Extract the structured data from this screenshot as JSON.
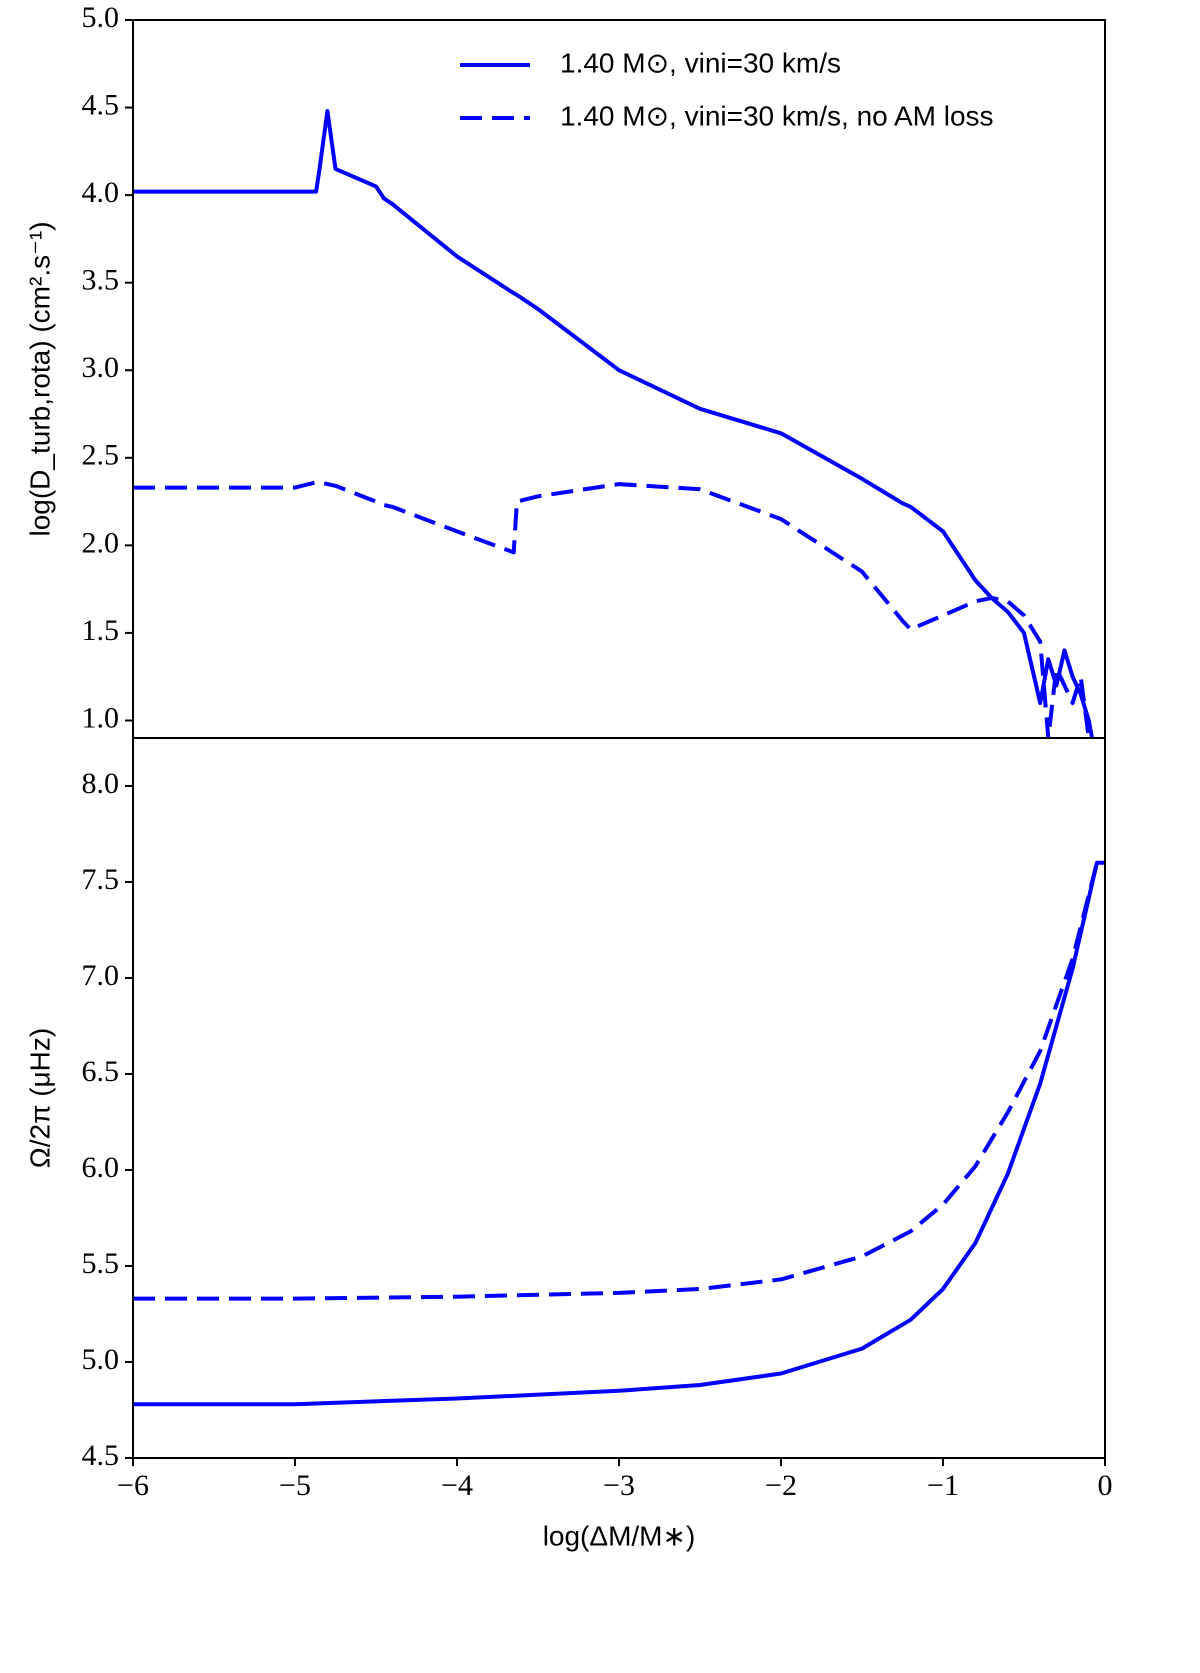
{
  "chart_data": [
    {
      "type": "line",
      "y_label": "log(D_turb,rota) (cm².s⁻¹)",
      "x": [
        -6,
        -5,
        -4.87,
        -4.85,
        -4.8,
        -4.75,
        -4.5,
        -4.45,
        -4.4,
        -4,
        -3.65,
        -3.63,
        -3.5,
        -3,
        -2.5,
        -2,
        -1.5,
        -1.25,
        -1.2,
        -1,
        -0.8,
        -0.7,
        -0.6,
        -0.5,
        -0.4,
        -0.35,
        -0.3,
        -0.25,
        -0.2,
        -0.15,
        -0.1,
        -0.08
      ],
      "series": [
        {
          "name": "1.40 M⊙, vini=30 km/s",
          "color": "#0000ff",
          "linestyle": "solid",
          "values": [
            4.02,
            4.02,
            4.02,
            4.14,
            4.48,
            4.15,
            4.05,
            3.98,
            3.95,
            3.65,
            3.44,
            3.43,
            3.35,
            3.0,
            2.78,
            2.64,
            2.38,
            2.24,
            2.22,
            2.08,
            1.8,
            1.7,
            1.62,
            1.5,
            1.1,
            1.35,
            1.2,
            1.4,
            1.25,
            1.15,
            1.0,
            0.9
          ]
        },
        {
          "name": "1.40 M⊙, vini=30 km/s, no AM loss",
          "color": "#0000ff",
          "linestyle": "dashed",
          "values": [
            2.33,
            2.33,
            2.36,
            2.36,
            2.35,
            2.34,
            2.25,
            2.23,
            2.22,
            2.08,
            1.96,
            2.25,
            2.28,
            2.35,
            2.32,
            2.15,
            1.85,
            1.57,
            1.52,
            1.6,
            1.68,
            1.7,
            1.68,
            1.6,
            1.45,
            0.9,
            1.3,
            1.2,
            1.1,
            1.25,
            0.9,
            0.9
          ]
        }
      ],
      "xlim": [
        -6,
        0
      ],
      "ylim": [
        0.9,
        5.0
      ],
      "yticks": [
        {
          "value": 1,
          "label": "1.0"
        },
        1.5,
        {
          "value": 2,
          "label": "2.0"
        },
        2.5,
        {
          "value": 3,
          "label": "3.0"
        },
        3.5,
        {
          "value": 4,
          "label": "4.0"
        },
        4.5,
        {
          "value": 5,
          "label": "5.0"
        }
      ],
      "legend": "upper right"
    },
    {
      "type": "line",
      "y_label": "Ω/2π (μHz)",
      "x_label": "log(ΔM/M∗)",
      "x": [
        -6,
        -5,
        -4,
        -3,
        -2.5,
        -2,
        -1.5,
        -1.2,
        -1,
        -0.8,
        -0.6,
        -0.4,
        -0.2,
        -0.05,
        0
      ],
      "series": [
        {
          "color": "#0000ff",
          "linestyle": "solid",
          "values": [
            4.78,
            4.78,
            4.81,
            4.85,
            4.88,
            4.94,
            5.07,
            5.22,
            5.38,
            5.62,
            5.98,
            6.45,
            7.05,
            7.6,
            7.6
          ]
        },
        {
          "color": "#0000ff",
          "linestyle": "dashed",
          "values": [
            5.33,
            5.33,
            5.34,
            5.36,
            5.38,
            5.43,
            5.55,
            5.68,
            5.82,
            6.02,
            6.3,
            6.62,
            7.1,
            7.6,
            7.6
          ]
        }
      ],
      "xlim": [
        -6,
        0
      ],
      "xticks": [
        {
          "value": -6,
          "label": "−6"
        },
        {
          "value": -5,
          "label": "−5"
        },
        {
          "value": -4,
          "label": "−4"
        },
        {
          "value": -3,
          "label": "−3"
        },
        {
          "value": -2,
          "label": "−2"
        },
        {
          "value": -1,
          "label": "−1"
        },
        0
      ],
      "ylim": [
        4.5,
        8.25
      ],
      "yticks": [
        4.5,
        {
          "value": 5,
          "label": "5.0"
        },
        5.5,
        {
          "value": 6,
          "label": "6.0"
        },
        6.5,
        {
          "value": 7,
          "label": "7.0"
        },
        7.5,
        {
          "value": 8,
          "label": "8.0"
        }
      ]
    }
  ]
}
